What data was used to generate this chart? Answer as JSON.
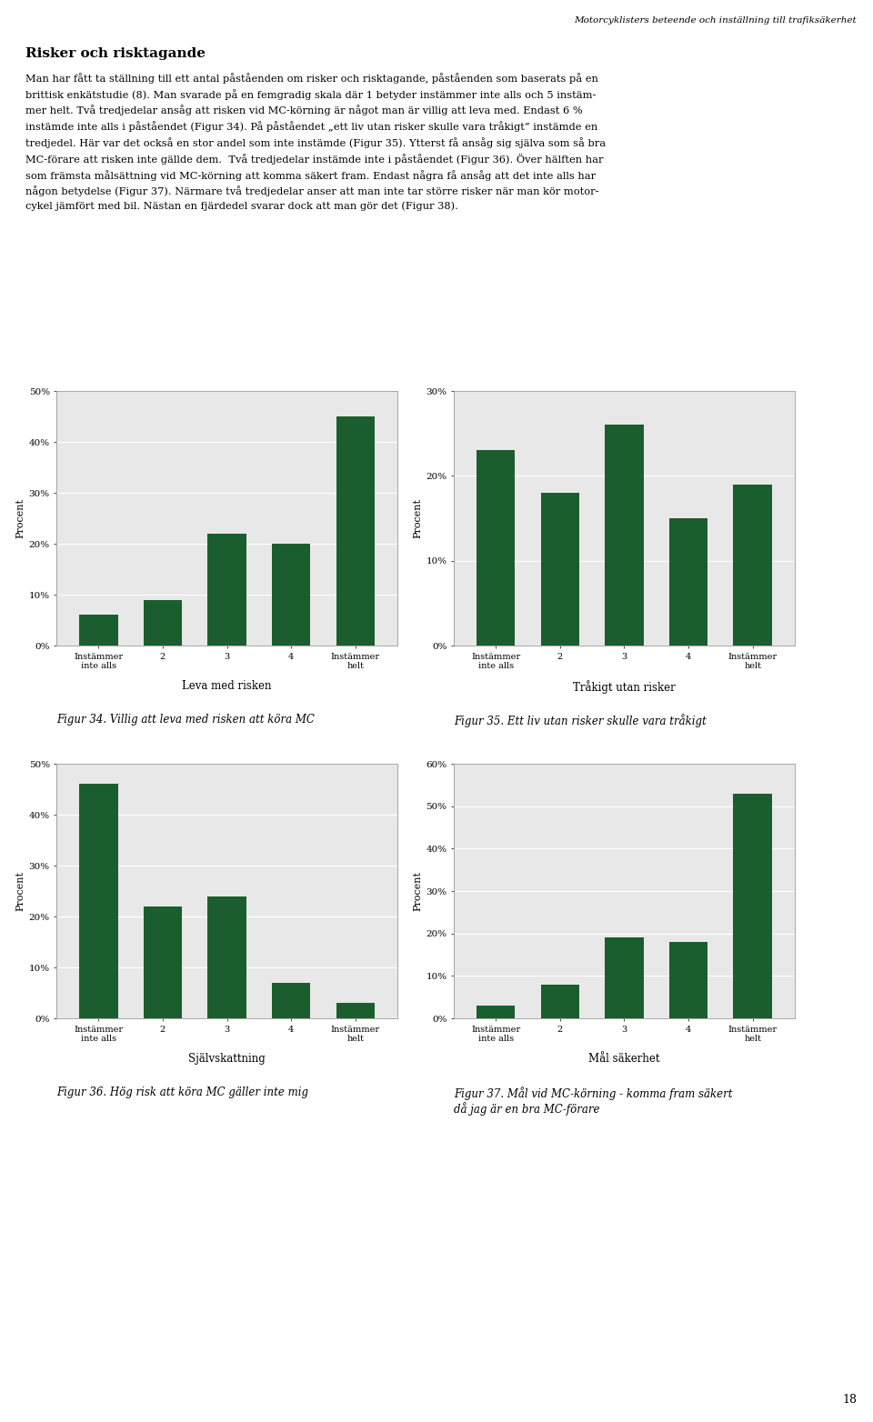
{
  "title": "Motorcyklisters beteende och inställning till trafiksäkerhet",
  "page_number": "18",
  "header_text": "Risker och risktagande",
  "body_text": "Man har fått ta ställning till ett antal påståenden om risker och risktagande, påståenden som baserats på en\nbrittisk enkätstudie (8). Man svarade på en femgradig skala där 1 betyder instämmer inte alls och 5 instäm-\nmer helt. Två tredjedelar ansåg att risken vid MC-körning är något man är villig att leva med. Endast 6 %\ninstämde inte alls i påståendet (Figur 34). På påståendet „ett liv utan risker skulle vara tråkigt” instämde en\ntredjedel. Här var det också en stor andel som inte instämde (Figur 35). Ytterst få ansåg sig själva som så bra\nMC-förare att risken inte gällde dem.  Två tredjedelar instämde inte i påståendet (Figur 36). Över hälften har\nsom främsta målsättning vid MC-körning att komma säkert fram. Endast några få ansåg att det inte alls har\nnågon betydelse (Figur 37). Närmare två tredjedelar anser att man inte tar större risker när man kör motor-\ncykel jämfört med bil. Nästan en fjärdedel svarar dock att man gör det (Figur 38).",
  "charts": [
    {
      "id": "fig34",
      "xlabel_bottom": "Leva med risken",
      "fig_caption": "Figur 34. Villig att leva med risken att köra MC",
      "categories": [
        "Instämmer\ninte alls",
        "2",
        "3",
        "4",
        "Instämmer\nhelt"
      ],
      "values": [
        6,
        9,
        22,
        20,
        45
      ],
      "ylim": [
        0,
        50
      ],
      "yticks": [
        0,
        10,
        20,
        30,
        40,
        50
      ],
      "yticklabels": [
        "0%",
        "10%",
        "20%",
        "30%",
        "40%",
        "50%"
      ]
    },
    {
      "id": "fig35",
      "xlabel_bottom": "Tråkigt utan risker",
      "fig_caption": "Figur 35. Ett liv utan risker skulle vara tråkigt",
      "categories": [
        "Instämmer\ninte alls",
        "2",
        "3",
        "4",
        "Instämmer\nhelt"
      ],
      "values": [
        23,
        18,
        26,
        15,
        19
      ],
      "ylim": [
        0,
        30
      ],
      "yticks": [
        0,
        10,
        20,
        30
      ],
      "yticklabels": [
        "0%",
        "10%",
        "20%",
        "30%"
      ]
    },
    {
      "id": "fig36",
      "xlabel_bottom": "Självskattning",
      "fig_caption": "Figur 36. Hög risk att köra MC gäller inte mig",
      "categories": [
        "Instämmer\ninte alls",
        "2",
        "3",
        "4",
        "Instämmer\nhelt"
      ],
      "values": [
        46,
        22,
        24,
        7,
        3
      ],
      "ylim": [
        0,
        50
      ],
      "yticks": [
        0,
        10,
        20,
        30,
        40,
        50
      ],
      "yticklabels": [
        "0%",
        "10%",
        "20%",
        "30%",
        "40%",
        "50%"
      ]
    },
    {
      "id": "fig37",
      "xlabel_bottom": "Mål säkerhet",
      "fig_caption": "Figur 37. Mål vid MC-körning - komma fram säkert\ndå jag är en bra MC-förare",
      "categories": [
        "Instämmer\ninte alls",
        "2",
        "3",
        "4",
        "Instämmer\nhelt"
      ],
      "values": [
        3,
        8,
        19,
        18,
        53
      ],
      "ylim": [
        0,
        60
      ],
      "yticks": [
        0,
        10,
        20,
        30,
        40,
        50,
        60
      ],
      "yticklabels": [
        "0%",
        "10%",
        "20%",
        "30%",
        "40%",
        "50%",
        "60%"
      ]
    }
  ],
  "bar_color": "#1b5e2e",
  "bg_color": "#e8e8e8",
  "ylabel": "Procent",
  "fig_width": 9.6,
  "fig_height": 15.64
}
